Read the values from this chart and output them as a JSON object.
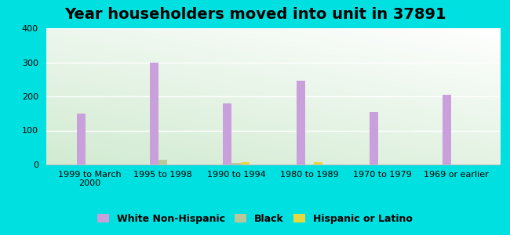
{
  "title": "Year householders moved into unit in 37891",
  "categories": [
    "1999 to March\n2000",
    "1995 to 1998",
    "1990 to 1994",
    "1980 to 1989",
    "1970 to 1979",
    "1969 or earlier"
  ],
  "white_non_hispanic": [
    150,
    300,
    180,
    245,
    155,
    205
  ],
  "black": [
    0,
    13,
    5,
    0,
    0,
    0
  ],
  "hispanic_or_latino": [
    0,
    0,
    8,
    7,
    0,
    0
  ],
  "bar_width": 0.12,
  "white_color": "#c9a0dc",
  "black_color": "#b8c89a",
  "hispanic_color": "#e8d840",
  "background_outer": "#00e0e0",
  "ylim": [
    0,
    400
  ],
  "yticks": [
    0,
    100,
    200,
    300,
    400
  ],
  "title_fontsize": 14,
  "legend_fontsize": 9,
  "tick_fontsize": 8
}
